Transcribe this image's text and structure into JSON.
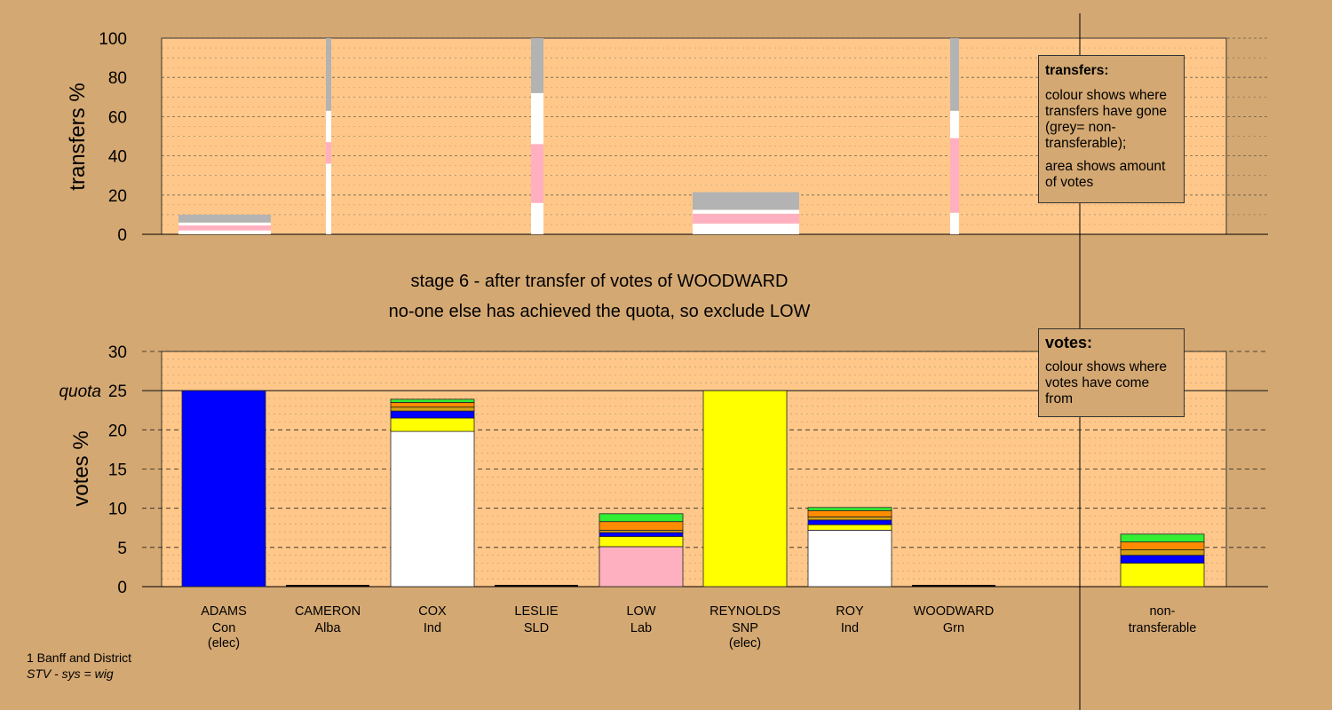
{
  "title_lines": {
    "stage": "stage 6 - after transfer of votes of WOODWARD",
    "action": "no-one else has achieved the quota, so exclude LOW"
  },
  "footer": {
    "area": "1 Banff and District",
    "system": "STV - sys = wig"
  },
  "legends": {
    "transfers": {
      "title": "transfers:",
      "line1": "colour shows where transfers have gone (grey= non-transferable);",
      "line2": "area shows amount of votes"
    },
    "votes": {
      "title": "votes:",
      "line1": "colour shows where votes have come from"
    }
  },
  "colors": {
    "background": "#d4a872",
    "plot_bg": "#ffc88a",
    "Con": "#0000ff",
    "Alba": "#ff8c00",
    "Ind": "#ffffff",
    "SLD": "#d4a015",
    "Lab": "#ffb0c0",
    "SNP": "#ffff00",
    "Grn": "#33ee33",
    "nontransferable": "#b3b3b3"
  },
  "chart_data": [
    {
      "type": "bar",
      "name": "transfers",
      "ylabel": "transfers %",
      "ylim": [
        0,
        100
      ],
      "yticks": [
        0,
        20,
        40,
        60,
        80,
        100
      ],
      "grid": true,
      "note": "stacked columns; column width ∝ votes transferred",
      "columns": [
        {
          "source": "ADAMS",
          "segments": [
            {
              "to": "Ind",
              "value": 2
            },
            {
              "to": "Lab",
              "value": 2.5
            },
            {
              "to": "Ind",
              "value": 1.5
            },
            {
              "to": "nontransferable",
              "value": 4
            }
          ]
        },
        {
          "source": "CAMERON",
          "segments": [
            {
              "to": "Ind",
              "value": 36
            },
            {
              "to": "Lab",
              "value": 11
            },
            {
              "to": "Ind",
              "value": 16
            },
            {
              "to": "nontransferable",
              "value": 37
            }
          ]
        },
        {
          "source": "LESLIE",
          "segments": [
            {
              "to": "Ind",
              "value": 16
            },
            {
              "to": "Lab",
              "value": 30
            },
            {
              "to": "Ind",
              "value": 26
            },
            {
              "to": "nontransferable",
              "value": 28
            }
          ]
        },
        {
          "source": "REYNOLDS",
          "segments": [
            {
              "to": "Ind",
              "value": 5.5
            },
            {
              "to": "Lab",
              "value": 5
            },
            {
              "to": "Ind",
              "value": 2
            },
            {
              "to": "nontransferable",
              "value": 9
            }
          ]
        },
        {
          "source": "WOODWARD",
          "segments": [
            {
              "to": "Ind",
              "value": 11
            },
            {
              "to": "Lab",
              "value": 38
            },
            {
              "to": "Ind",
              "value": 14
            },
            {
              "to": "nontransferable",
              "value": 37
            }
          ]
        }
      ]
    },
    {
      "type": "bar",
      "name": "votes",
      "ylabel": "votes %",
      "ylim": [
        0,
        30
      ],
      "yticks": [
        0,
        5,
        10,
        15,
        20,
        25,
        30
      ],
      "quota": 25,
      "quota_label": "quota",
      "grid": true,
      "candidates": [
        {
          "name": "ADAMS",
          "party": "Con",
          "status": "(elec)",
          "segments": [
            {
              "from": "Con",
              "value": 25
            }
          ]
        },
        {
          "name": "CAMERON",
          "party": "Alba",
          "status": "",
          "segments": []
        },
        {
          "name": "COX",
          "party": "Ind",
          "status": "",
          "segments": [
            {
              "from": "Ind",
              "value": 19.8
            },
            {
              "from": "SNP",
              "value": 1.7
            },
            {
              "from": "Con",
              "value": 0.9
            },
            {
              "from": "SLD",
              "value": 0.5
            },
            {
              "from": "Alba",
              "value": 0.6
            },
            {
              "from": "Grn",
              "value": 0.4
            }
          ]
        },
        {
          "name": "LESLIE",
          "party": "SLD",
          "status": "",
          "segments": []
        },
        {
          "name": "LOW",
          "party": "Lab",
          "status": "",
          "segments": [
            {
              "from": "Lab",
              "value": 5.1
            },
            {
              "from": "SNP",
              "value": 1.3
            },
            {
              "from": "Con",
              "value": 0.5
            },
            {
              "from": "SLD",
              "value": 0.3
            },
            {
              "from": "Alba",
              "value": 1.1
            },
            {
              "from": "Grn",
              "value": 1.0
            }
          ]
        },
        {
          "name": "REYNOLDS",
          "party": "SNP",
          "status": "(elec)",
          "segments": [
            {
              "from": "SNP",
              "value": 25
            }
          ]
        },
        {
          "name": "ROY",
          "party": "Ind",
          "status": "",
          "segments": [
            {
              "from": "Ind",
              "value": 7.2
            },
            {
              "from": "SNP",
              "value": 0.7
            },
            {
              "from": "Con",
              "value": 0.6
            },
            {
              "from": "SLD",
              "value": 0.4
            },
            {
              "from": "Alba",
              "value": 0.8
            },
            {
              "from": "Grn",
              "value": 0.4
            }
          ]
        },
        {
          "name": "WOODWARD",
          "party": "Grn",
          "status": "",
          "segments": []
        },
        {
          "name": "non-",
          "party": "transferable",
          "status": "",
          "segments": [
            {
              "from": "SNP",
              "value": 3.0
            },
            {
              "from": "Con",
              "value": 1.0
            },
            {
              "from": "SLD",
              "value": 0.7
            },
            {
              "from": "Alba",
              "value": 1.0
            },
            {
              "from": "Grn",
              "value": 1.0
            }
          ]
        }
      ]
    }
  ]
}
